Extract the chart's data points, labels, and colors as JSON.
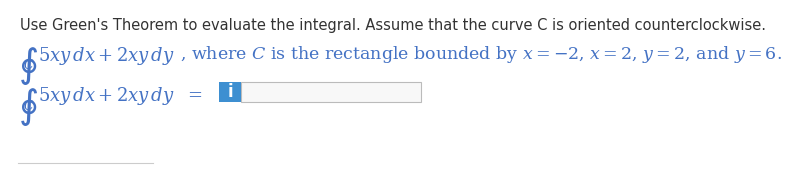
{
  "line1": "Use Green's Theorem to evaluate the integral. Assume that the curve C is oriented counterclockwise.",
  "line1_fontsize": 10.5,
  "line1_color": "#333333",
  "math_line2": "$\\oint_C$ $5xy\\,dx + 2xy\\,dy$, where $C$ is the rectangle bounded by $x = -2$, $x = 2$, $y = 2$, and $y = 6$.",
  "math_answer": "$\\oint_C$ $5xy\\,dx + 2xy\\,dy$ $=$",
  "math_fontsize": 13.0,
  "math_color": "#4472c4",
  "answer_box_color": "#3d8fd1",
  "answer_box_letter": "i",
  "answer_box_letter_color": "#ffffff",
  "background_color": "#ffffff",
  "input_box_border_color": "#bbbbbb",
  "input_box_fill": "#f8f8f8"
}
